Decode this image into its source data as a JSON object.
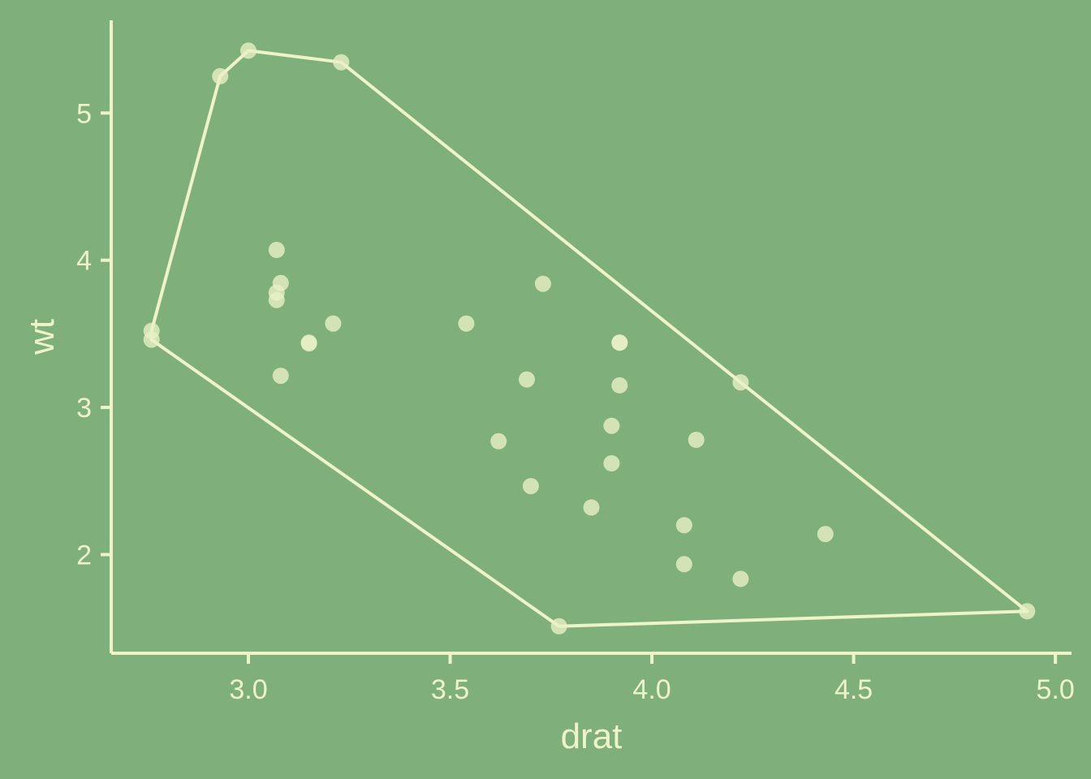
{
  "colors": {
    "background": "#7fb07b",
    "foreground": "#eef3c8",
    "point_fill": "#e9f0c6"
  },
  "chart_data": {
    "type": "scatter",
    "title": "",
    "xlabel": "drat",
    "ylabel": "wt",
    "xlim": [
      2.66,
      5.04
    ],
    "ylim": [
      1.33,
      5.63
    ],
    "x_ticks": [
      3.0,
      3.5,
      4.0,
      4.5,
      5.0
    ],
    "x_tick_labels": [
      "3.0",
      "3.5",
      "4.0",
      "4.5",
      "5.0"
    ],
    "y_ticks": [
      2,
      3,
      4,
      5
    ],
    "y_tick_labels": [
      "2",
      "3",
      "4",
      "5"
    ],
    "grid": false,
    "points": [
      {
        "x": 3.9,
        "y": 2.62
      },
      {
        "x": 3.9,
        "y": 2.875
      },
      {
        "x": 3.85,
        "y": 2.32
      },
      {
        "x": 3.08,
        "y": 3.215
      },
      {
        "x": 3.15,
        "y": 3.44
      },
      {
        "x": 2.76,
        "y": 3.46
      },
      {
        "x": 3.21,
        "y": 3.57
      },
      {
        "x": 3.69,
        "y": 3.19
      },
      {
        "x": 3.92,
        "y": 3.15
      },
      {
        "x": 3.92,
        "y": 3.44
      },
      {
        "x": 3.92,
        "y": 3.44
      },
      {
        "x": 3.07,
        "y": 4.07
      },
      {
        "x": 3.07,
        "y": 3.73
      },
      {
        "x": 3.07,
        "y": 3.78
      },
      {
        "x": 2.93,
        "y": 5.25
      },
      {
        "x": 3.0,
        "y": 5.424
      },
      {
        "x": 3.23,
        "y": 5.345
      },
      {
        "x": 4.08,
        "y": 2.2
      },
      {
        "x": 4.93,
        "y": 1.615
      },
      {
        "x": 4.22,
        "y": 1.835
      },
      {
        "x": 3.7,
        "y": 2.465
      },
      {
        "x": 2.76,
        "y": 3.52
      },
      {
        "x": 3.15,
        "y": 3.435
      },
      {
        "x": 3.73,
        "y": 3.84
      },
      {
        "x": 3.08,
        "y": 3.845
      },
      {
        "x": 4.08,
        "y": 1.935
      },
      {
        "x": 4.43,
        "y": 2.14
      },
      {
        "x": 3.77,
        "y": 1.513
      },
      {
        "x": 4.22,
        "y": 3.17
      },
      {
        "x": 3.62,
        "y": 2.77
      },
      {
        "x": 3.54,
        "y": 3.57
      },
      {
        "x": 4.11,
        "y": 2.78
      }
    ],
    "hull": [
      {
        "x": 2.76,
        "y": 3.46
      },
      {
        "x": 3.77,
        "y": 1.513
      },
      {
        "x": 4.93,
        "y": 1.615
      },
      {
        "x": 4.22,
        "y": 3.17
      },
      {
        "x": 3.23,
        "y": 5.345
      },
      {
        "x": 3.0,
        "y": 5.424
      },
      {
        "x": 2.93,
        "y": 5.25
      },
      {
        "x": 2.76,
        "y": 3.52
      }
    ]
  }
}
